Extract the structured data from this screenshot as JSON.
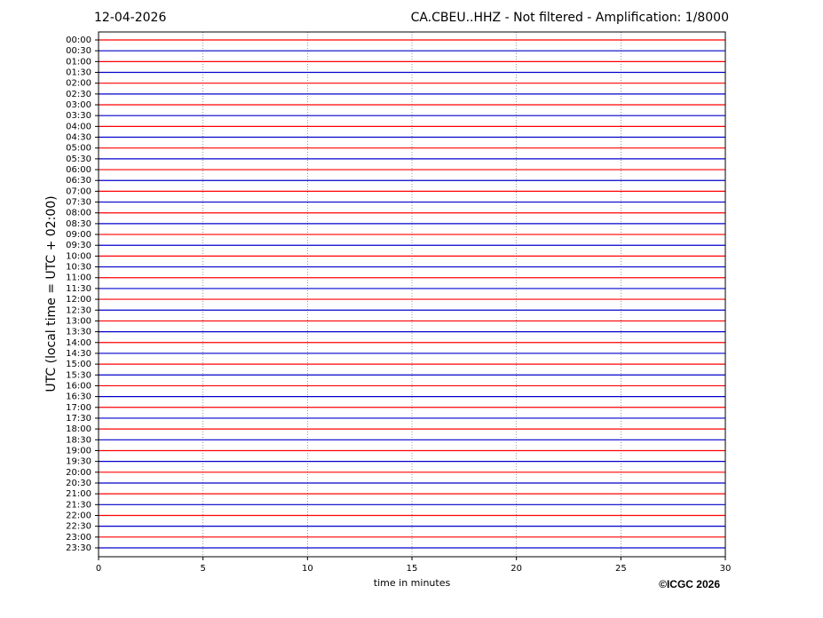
{
  "chart_data": {
    "type": "helicorder",
    "title": "12-04-2026",
    "subtitle": "CA.CBEU..HHZ - Not filtered - Amplification: 1/8000",
    "x_label": "time in minutes",
    "y_label": "UTC (local time = UTC + 02:00)",
    "credit": "©ICGC 2026",
    "categories": [
      "00:00",
      "00:30",
      "01:00",
      "01:30",
      "02:00",
      "02:30",
      "03:00",
      "03:30",
      "04:00",
      "04:30",
      "05:00",
      "05:30",
      "06:00",
      "06:30",
      "07:00",
      "07:30",
      "08:00",
      "08:30",
      "09:00",
      "09:30",
      "10:00",
      "10:30",
      "11:00",
      "11:30",
      "12:00",
      "12:30",
      "13:00",
      "13:30",
      "14:00",
      "14:30",
      "15:00",
      "15:30",
      "16:00",
      "16:30",
      "17:00",
      "17:30",
      "18:00",
      "18:30",
      "19:00",
      "19:30",
      "20:00",
      "20:30",
      "21:00",
      "21:30",
      "22:00",
      "22:30",
      "23:00",
      "23:30"
    ],
    "colors": [
      "#ff0000",
      "#0000cc"
    ],
    "xlim": [
      0,
      30
    ],
    "xticks": [
      0,
      5,
      10,
      15,
      20,
      25,
      30
    ],
    "grid": true
  }
}
